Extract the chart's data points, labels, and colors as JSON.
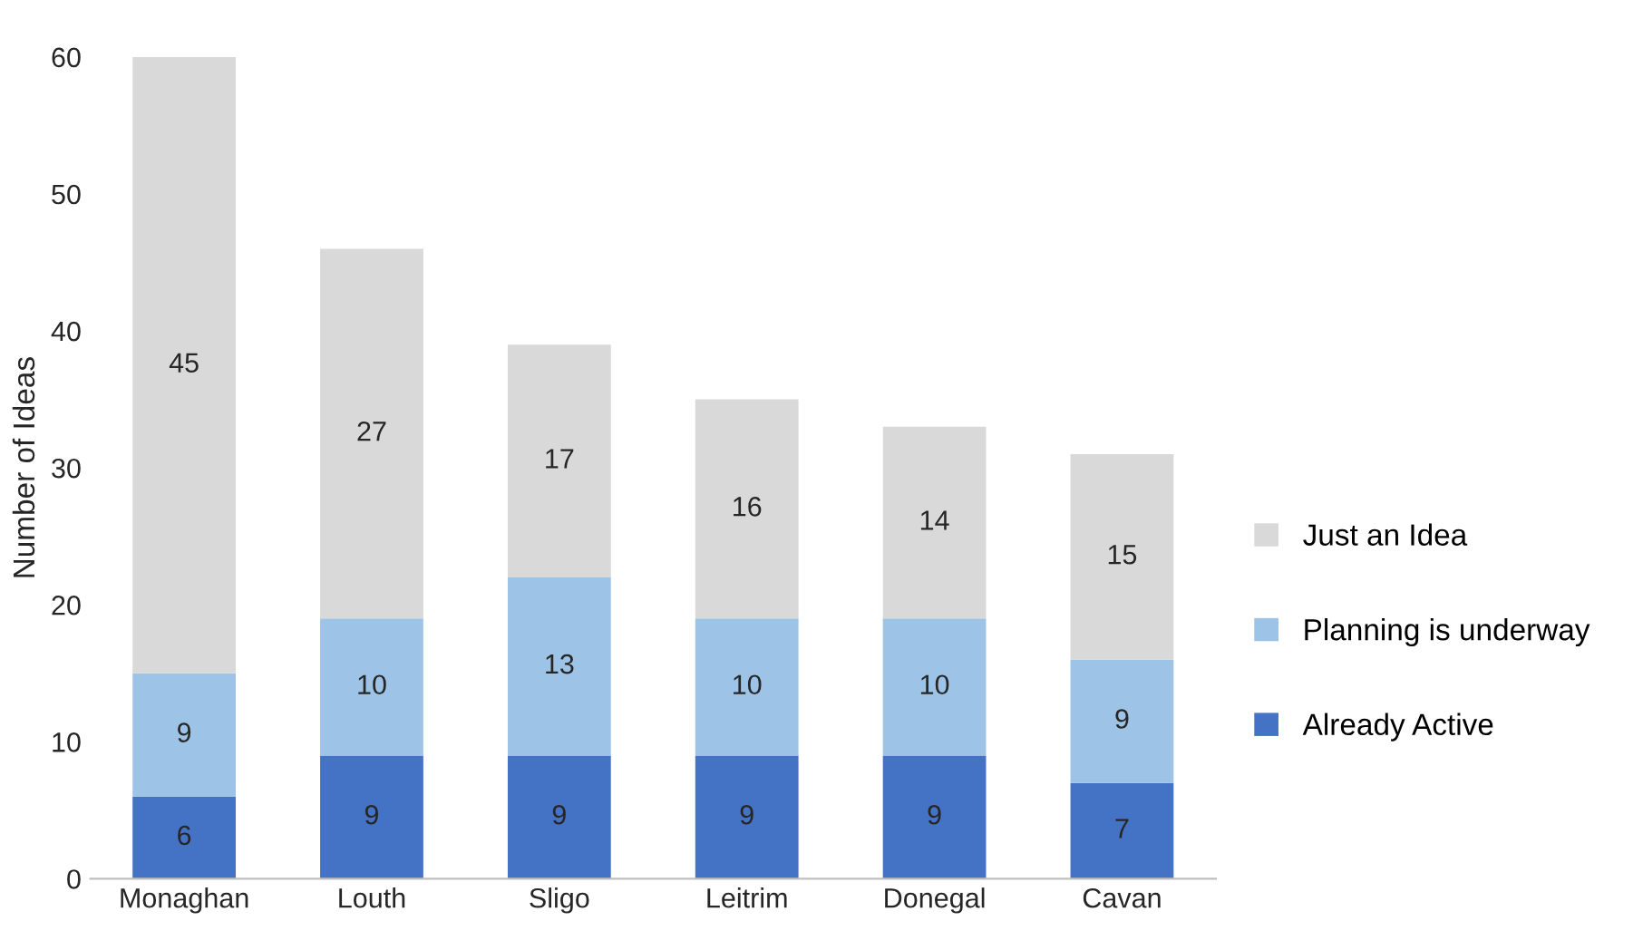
{
  "chart_data": {
    "type": "bar",
    "stacked": true,
    "ylabel": "Number of Ideas",
    "categories": [
      "Monaghan",
      "Louth",
      "Sligo",
      "Leitrim",
      "Donegal",
      "Cavan"
    ],
    "series": [
      {
        "name": "Already Active",
        "color": "#4472c4",
        "values": [
          6,
          9,
          9,
          9,
          9,
          7
        ]
      },
      {
        "name": "Planning is underway",
        "color": "#9dc3e6",
        "values": [
          9,
          10,
          13,
          10,
          10,
          9
        ]
      },
      {
        "name": "Just an Idea",
        "color": "#d9d9d9",
        "values": [
          45,
          27,
          17,
          16,
          14,
          15
        ]
      }
    ],
    "ylim": [
      0,
      60
    ],
    "yticks": [
      0,
      10,
      20,
      30,
      40,
      50,
      60
    ],
    "grid": false,
    "legend": "right",
    "data_labels": true
  }
}
